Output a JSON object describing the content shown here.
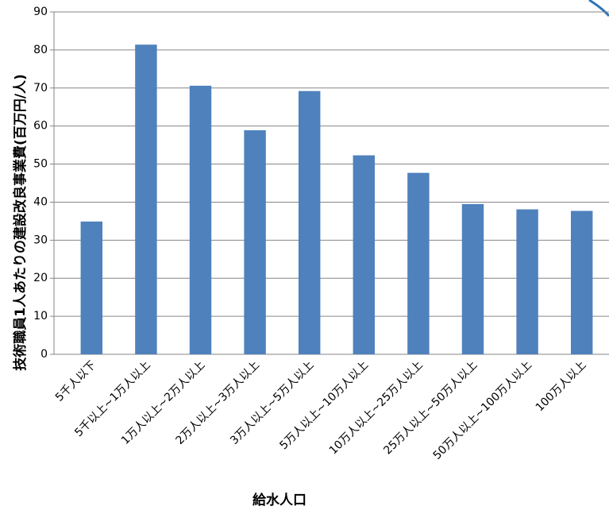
{
  "chart_data": {
    "type": "bar",
    "y_label": "技術職員1人あたりの建設改良事業費(百万円/人)",
    "x_label": "給水人口",
    "categories": [
      "5千人以下",
      "5千以上~1万人以上",
      "1万人以上~2万人以上",
      "2万人以上~3万人以上",
      "3万人以上~5万人以上",
      "5万人以上~10万人以上",
      "10万人以上~25万人以上",
      "25万人以上~50万人以上",
      "50万人以上~100万人以上",
      "100万人以上"
    ],
    "values": [
      34.9,
      81.4,
      70.6,
      58.9,
      69.2,
      52.3,
      47.7,
      39.5,
      38.1,
      37.7
    ],
    "color": "#4f81bd",
    "ylim": [
      0,
      90
    ],
    "yticks": [
      0,
      10,
      20,
      30,
      40,
      50,
      60,
      70,
      80,
      90
    ],
    "grid": true
  }
}
